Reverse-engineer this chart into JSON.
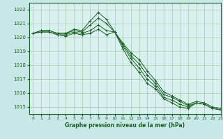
{
  "title": "Graphe pression niveau de la mer (hPa)",
  "bg_color": "#c8e8e8",
  "plot_bg_color": "#d8f0f0",
  "grid_color": "#a8c8a8",
  "line_color": "#1a6020",
  "xlim": [
    -0.5,
    23
  ],
  "ylim": [
    1014.5,
    1022.5
  ],
  "yticks": [
    1015,
    1016,
    1017,
    1018,
    1019,
    1020,
    1021,
    1022
  ],
  "xticks": [
    0,
    1,
    2,
    3,
    4,
    5,
    6,
    7,
    8,
    9,
    10,
    11,
    12,
    13,
    14,
    15,
    16,
    17,
    18,
    19,
    20,
    21,
    22,
    23
  ],
  "series": [
    [
      1020.3,
      1020.5,
      1020.5,
      1020.3,
      1020.3,
      1020.6,
      1020.5,
      1021.2,
      1021.8,
      1021.3,
      1020.4,
      1019.6,
      1018.9,
      1018.4,
      1017.6,
      1016.9,
      1016.1,
      1015.8,
      1015.5,
      1015.2,
      1015.4,
      1015.3,
      1015.0,
      1014.9
    ],
    [
      1020.3,
      1020.5,
      1020.5,
      1020.3,
      1020.3,
      1020.5,
      1020.4,
      1020.9,
      1021.4,
      1021.0,
      1020.4,
      1019.5,
      1018.7,
      1018.1,
      1017.3,
      1016.7,
      1015.9,
      1015.7,
      1015.4,
      1015.1,
      1015.3,
      1015.2,
      1014.9,
      1014.8
    ],
    [
      1020.3,
      1020.4,
      1020.4,
      1020.2,
      1020.2,
      1020.4,
      1020.3,
      1020.5,
      1020.9,
      1020.5,
      1020.4,
      1019.4,
      1018.5,
      1017.8,
      1017.0,
      1016.5,
      1015.7,
      1015.5,
      1015.2,
      1015.0,
      1015.3,
      1015.2,
      1014.9,
      1014.8
    ],
    [
      1020.3,
      1020.4,
      1020.4,
      1020.2,
      1020.1,
      1020.3,
      1020.2,
      1020.3,
      1020.6,
      1020.2,
      1020.4,
      1019.2,
      1018.2,
      1017.5,
      1016.7,
      1016.3,
      1015.6,
      1015.3,
      1015.0,
      1014.9,
      1015.3,
      1015.2,
      1014.9,
      1014.8
    ]
  ]
}
